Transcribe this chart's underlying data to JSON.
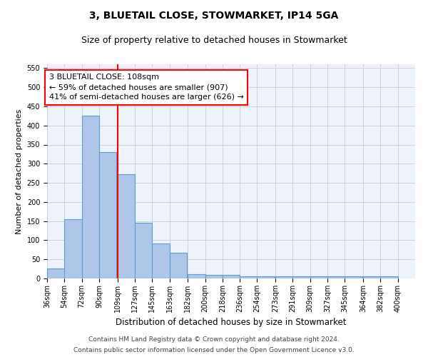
{
  "title1": "3, BLUETAIL CLOSE, STOWMARKET, IP14 5GA",
  "title2": "Size of property relative to detached houses in Stowmarket",
  "xlabel": "Distribution of detached houses by size in Stowmarket",
  "ylabel": "Number of detached properties",
  "footnote1": "Contains HM Land Registry data © Crown copyright and database right 2024.",
  "footnote2": "Contains public sector information licensed under the Open Government Licence v3.0.",
  "bar_left_edges": [
    36,
    54,
    72,
    90,
    109,
    127,
    145,
    163,
    182,
    200,
    218,
    236,
    254,
    273,
    291,
    309,
    327,
    345,
    364,
    382
  ],
  "bar_widths": [
    18,
    18,
    18,
    18,
    18,
    18,
    18,
    18,
    18,
    18,
    18,
    18,
    18,
    18,
    18,
    18,
    18,
    18,
    18,
    18
  ],
  "bar_heights": [
    27,
    155,
    425,
    330,
    272,
    145,
    92,
    68,
    12,
    10,
    10,
    5,
    5,
    5,
    5,
    5,
    5,
    5,
    5,
    5
  ],
  "bar_color": "#aec6e8",
  "bar_edge_color": "#5a9fd4",
  "bar_edge_width": 0.8,
  "x_tick_labels": [
    "36sqm",
    "54sqm",
    "72sqm",
    "90sqm",
    "109sqm",
    "127sqm",
    "145sqm",
    "163sqm",
    "182sqm",
    "200sqm",
    "218sqm",
    "236sqm",
    "254sqm",
    "273sqm",
    "291sqm",
    "309sqm",
    "327sqm",
    "345sqm",
    "364sqm",
    "382sqm",
    "400sqm"
  ],
  "ylim": [
    0,
    560
  ],
  "yticks": [
    0,
    50,
    100,
    150,
    200,
    250,
    300,
    350,
    400,
    450,
    500,
    550
  ],
  "xlim_left": 36,
  "xlim_right": 418,
  "red_line_x": 109,
  "annotation_text": "3 BLUETAIL CLOSE: 108sqm\n← 59% of detached houses are smaller (907)\n41% of semi-detached houses are larger (626) →",
  "grid_color": "#cccccc",
  "background_color": "#eef2fb",
  "title1_fontsize": 10,
  "title2_fontsize": 9,
  "xlabel_fontsize": 8.5,
  "ylabel_fontsize": 8,
  "tick_fontsize": 7,
  "annotation_fontsize": 8,
  "footnote_fontsize": 6.5
}
